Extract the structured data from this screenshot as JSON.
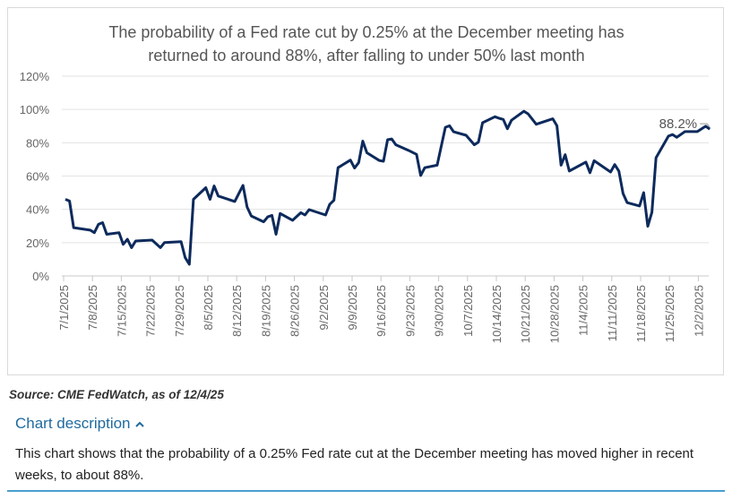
{
  "chart_data": {
    "type": "line",
    "title_lines": [
      "The probability of a Fed rate cut by 0.25% at the December meeting has",
      "returned to around 88%, after falling to under 50% last month"
    ],
    "xlabel": "",
    "ylabel": "",
    "ylim": [
      0,
      120
    ],
    "y_ticks": [
      "0%",
      "20%",
      "40%",
      "60%",
      "80%",
      "100%",
      "120%"
    ],
    "x_ticks": [
      "7/1/2025",
      "7/8/2025",
      "7/15/2025",
      "7/22/2025",
      "7/29/2025",
      "8/5/2025",
      "8/12/2025",
      "8/19/2025",
      "8/26/2025",
      "9/2/2025",
      "9/9/2025",
      "9/16/2025",
      "9/23/2025",
      "9/30/2025",
      "10/7/2025",
      "10/14/2025",
      "10/21/2025",
      "10/28/2025",
      "11/4/2025",
      "11/11/2025",
      "11/18/2025",
      "11/25/2025",
      "12/2/2025"
    ],
    "x_unit": "days since 7/1/2025",
    "grid": true,
    "series": [
      {
        "name": "Probability of 0.25% cut",
        "color": "#0d2a5c",
        "x": [
          0,
          1,
          2,
          6,
          7,
          8,
          9,
          10,
          13,
          14,
          15,
          16,
          17,
          21,
          23,
          24,
          28,
          29,
          30,
          31,
          34,
          35,
          36,
          37,
          41,
          43,
          44,
          45,
          48,
          49,
          50,
          51,
          52,
          55,
          57,
          58,
          59,
          63,
          64,
          65,
          66,
          69,
          70,
          71,
          72,
          73,
          76,
          77,
          78,
          79,
          80,
          83,
          85,
          86,
          87,
          90,
          92,
          93,
          94,
          97,
          99,
          100,
          101,
          104,
          105,
          106,
          107,
          108,
          111,
          112,
          114,
          118,
          119,
          120,
          121,
          122,
          126,
          127,
          128,
          132,
          133,
          134,
          135,
          136,
          139,
          140,
          141,
          142,
          143,
          146,
          147,
          148,
          150,
          153,
          155,
          156
        ],
        "values": [
          46,
          45,
          29,
          27.5,
          26,
          31,
          32,
          25,
          26,
          19,
          22,
          17,
          21,
          21.5,
          17,
          20,
          20.6,
          11,
          7,
          46,
          53,
          46,
          54,
          48,
          44.7,
          54.4,
          41.4,
          36,
          32.5,
          35.5,
          36.4,
          25,
          37.5,
          33.4,
          38,
          36.6,
          39.8,
          36.6,
          43,
          45.4,
          65,
          69.6,
          64.8,
          68,
          81,
          74,
          69.3,
          68.9,
          81.8,
          82.3,
          78.8,
          75.5,
          73,
          60.3,
          65,
          66.5,
          89.3,
          90.2,
          86.6,
          84.5,
          78.8,
          80.4,
          92,
          95.6,
          94.7,
          94,
          88.4,
          93.5,
          98.9,
          97.4,
          91.1,
          94.4,
          90.2,
          66.5,
          72.8,
          63,
          68.4,
          62,
          69.2,
          62.4,
          66.9,
          63,
          49.5,
          44,
          42,
          50,
          29.8,
          38.2,
          71,
          84,
          84.9,
          83.3,
          86.7,
          86.7,
          89.9,
          88.2
        ]
      }
    ],
    "annotations": [
      {
        "text": "88.2%"
      }
    ]
  },
  "source": "Source: CME FedWatch, as of 12/4/25",
  "description": {
    "toggle_label": "Chart description",
    "toggle_icon": "chevron-up-icon",
    "text": "This chart shows that the probability of a 0.25% Fed rate cut at the December meeting has moved higher in recent weeks, to about 88%."
  }
}
